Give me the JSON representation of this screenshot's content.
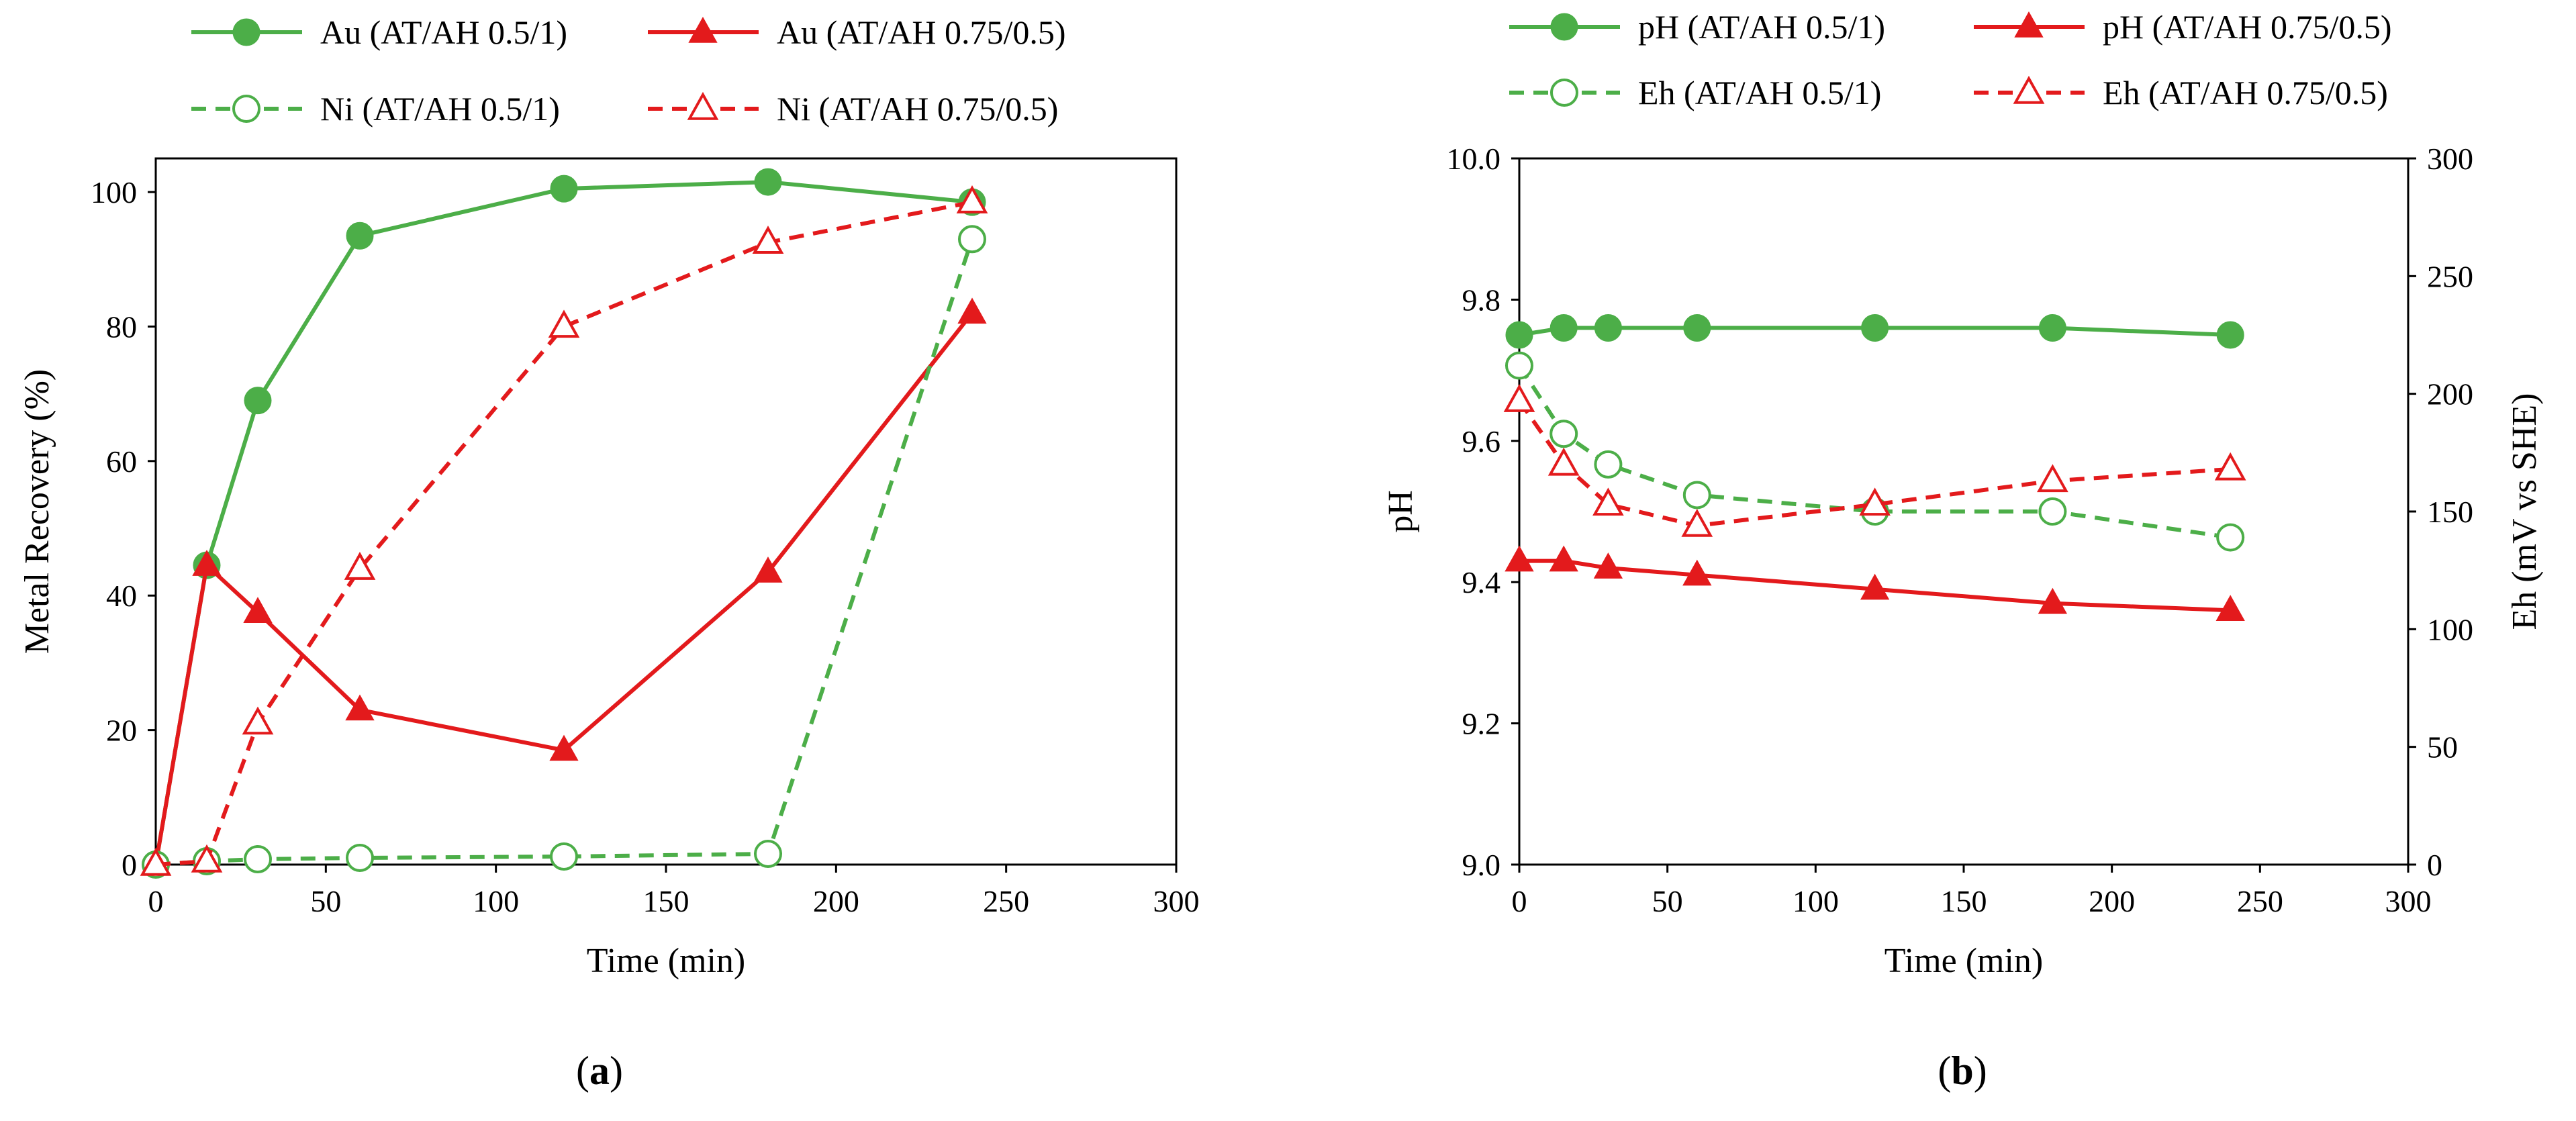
{
  "chart_data": [
    {
      "type": "line",
      "panel_label": "a",
      "title": "",
      "xlabel": "Time (min)",
      "ylabel": "Metal Recovery (%)",
      "xlim": [
        0,
        300
      ],
      "ylim": [
        0,
        105
      ],
      "xticks": [
        0,
        50,
        100,
        150,
        200,
        250,
        300
      ],
      "yticks": [
        0,
        20,
        40,
        60,
        80,
        100
      ],
      "grid": false,
      "legend_position": "top",
      "series": [
        {
          "name": "Au (AT/AH 0.5/1)",
          "color": "#4cae48",
          "style": "solid",
          "marker": "filled-circle",
          "x": [
            0,
            15,
            30,
            60,
            120,
            180,
            240
          ],
          "values": [
            0,
            44.5,
            69,
            93.5,
            100.5,
            101.5,
            98.5
          ]
        },
        {
          "name": "Au (AT/AH 0.75/0.5)",
          "color": "#e31a1c",
          "style": "solid",
          "marker": "filled-triangle",
          "x": [
            0,
            15,
            30,
            60,
            120,
            180,
            240
          ],
          "values": [
            0,
            44.5,
            37.5,
            23,
            17,
            43.5,
            82
          ]
        },
        {
          "name": "Ni (AT/AH 0.5/1)",
          "color": "#4cae48",
          "style": "dashed",
          "marker": "open-circle",
          "x": [
            0,
            15,
            30,
            60,
            120,
            180,
            240
          ],
          "values": [
            0,
            0.5,
            0.8,
            1.0,
            1.2,
            1.6,
            93
          ]
        },
        {
          "name": "Ni (AT/AH 0.75/0.5)",
          "color": "#e31a1c",
          "style": "dashed",
          "marker": "open-triangle",
          "x": [
            0,
            15,
            30,
            60,
            120,
            180,
            240
          ],
          "values": [
            0,
            0.5,
            21,
            44,
            80,
            92.5,
            98.5
          ]
        }
      ]
    },
    {
      "type": "line",
      "panel_label": "b",
      "title": "",
      "xlabel": "Time (min)",
      "ylabel": "pH",
      "ylabel_right": "Eh (mV vs SHE)",
      "xlim": [
        0,
        300
      ],
      "ylim": [
        9.0,
        10.0
      ],
      "ylim_right": [
        0,
        300
      ],
      "xticks": [
        0,
        50,
        100,
        150,
        200,
        250,
        300
      ],
      "yticks": [
        "9.0",
        "9.2",
        "9.4",
        "9.6",
        "9.8",
        "10.0"
      ],
      "yticks_right": [
        0,
        50,
        100,
        150,
        200,
        250,
        300
      ],
      "grid": false,
      "legend_position": "top",
      "series": [
        {
          "name": "pH (AT/AH 0.5/1)",
          "color": "#4cae48",
          "style": "solid",
          "marker": "filled-circle",
          "axis": "left",
          "x": [
            0,
            15,
            30,
            60,
            120,
            180,
            240
          ],
          "values": [
            9.75,
            9.76,
            9.76,
            9.76,
            9.76,
            9.76,
            9.75
          ]
        },
        {
          "name": "pH (AT/AH 0.75/0.5)",
          "color": "#e31a1c",
          "style": "solid",
          "marker": "filled-triangle",
          "axis": "left",
          "x": [
            0,
            15,
            30,
            60,
            120,
            180,
            240
          ],
          "values": [
            9.43,
            9.43,
            9.42,
            9.41,
            9.39,
            9.37,
            9.36
          ]
        },
        {
          "name": "Eh (AT/AH 0.5/1)",
          "color": "#4cae48",
          "style": "dashed",
          "marker": "open-circle",
          "axis": "right",
          "x": [
            0,
            15,
            30,
            60,
            120,
            180,
            240
          ],
          "values": [
            212,
            183,
            170,
            157,
            150,
            150,
            139
          ]
        },
        {
          "name": "Eh (AT/AH 0.75/0.5)",
          "color": "#e31a1c",
          "style": "dashed",
          "marker": "open-triangle",
          "axis": "right",
          "x": [
            0,
            15,
            30,
            60,
            120,
            180,
            240
          ],
          "values": [
            197,
            170,
            153,
            144,
            153,
            163,
            168
          ]
        }
      ]
    }
  ]
}
